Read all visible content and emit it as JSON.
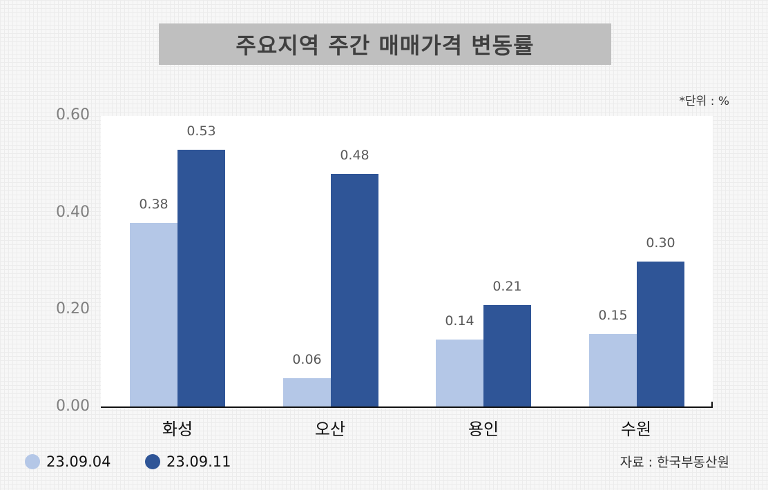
{
  "title": "주요지역 주간 매매가격 변동률",
  "unit_label": "*단위 : %",
  "source_label": "자료 : 한국부동산원",
  "colors": {
    "series1": "#b4c7e7",
    "series2": "#2f5597"
  },
  "legend": [
    {
      "label": "23.09.04",
      "color": "#b4c7e7"
    },
    {
      "label": "23.09.11",
      "color": "#2f5597"
    }
  ],
  "y_ticks": [
    "0.60",
    "0.40",
    "0.20",
    "0.00"
  ],
  "categories": [
    "화성",
    "오산",
    "용인",
    "수원"
  ],
  "value_labels": {
    "s1": [
      "0.38",
      "0.06",
      "0.14",
      "0.15"
    ],
    "s2": [
      "0.53",
      "0.48",
      "0.21",
      "0.30"
    ]
  },
  "chart_data": {
    "type": "bar",
    "title": "주요지역 주간 매매가격 변동률",
    "categories": [
      "화성",
      "오산",
      "용인",
      "수원"
    ],
    "series": [
      {
        "name": "23.09.04",
        "values": [
          0.38,
          0.06,
          0.14,
          0.15
        ],
        "color": "#b4c7e7"
      },
      {
        "name": "23.09.11",
        "values": [
          0.53,
          0.48,
          0.21,
          0.3
        ],
        "color": "#2f5597"
      }
    ],
    "xlabel": "",
    "ylabel": "",
    "unit": "%",
    "ylim": [
      0,
      0.6
    ],
    "yticks": [
      0.0,
      0.2,
      0.4,
      0.6
    ],
    "grid": false,
    "legend_position": "bottom-left",
    "annotations": [
      "*단위 : %",
      "자료 : 한국부동산원"
    ]
  }
}
